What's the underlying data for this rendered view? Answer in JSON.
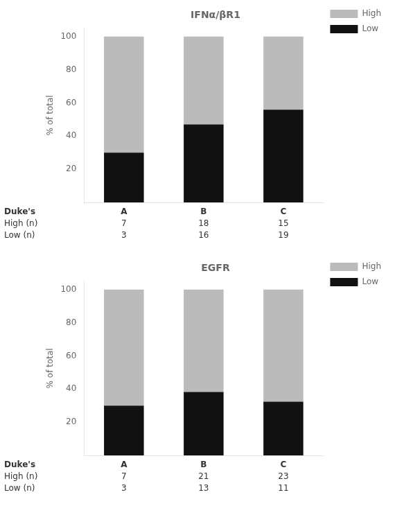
{
  "chart_data": [
    {
      "type": "bar",
      "title": "IFNα/βR1",
      "ylabel": "% of total",
      "xlabel": "Duke's",
      "categories": [
        "A",
        "B",
        "C"
      ],
      "stacked": true,
      "series": [
        {
          "name": "Low",
          "color": "#111111",
          "values": [
            30.0,
            47.06,
            55.88
          ]
        },
        {
          "name": "High",
          "color": "#bbbbbb",
          "values": [
            70.0,
            52.94,
            44.12
          ]
        }
      ],
      "table": [
        {
          "label": "High (n)",
          "values": [
            7,
            18,
            15
          ]
        },
        {
          "label": "Low (n)",
          "values": [
            3,
            16,
            19
          ]
        }
      ],
      "ylim": [
        0,
        105
      ],
      "yticks": [
        20,
        40,
        60,
        80,
        100
      ],
      "grid": false,
      "legend": "upper right"
    },
    {
      "type": "bar",
      "title": "EGFR",
      "ylabel": "% of total",
      "xlabel": "Duke's",
      "categories": [
        "A",
        "B",
        "C"
      ],
      "stacked": true,
      "series": [
        {
          "name": "Low",
          "color": "#111111",
          "values": [
            30.0,
            38.24,
            32.35
          ]
        },
        {
          "name": "High",
          "color": "#bbbbbb",
          "values": [
            70.0,
            61.76,
            67.65
          ]
        }
      ],
      "table": [
        {
          "label": "High (n)",
          "values": [
            7,
            21,
            23
          ]
        },
        {
          "label": "Low (n)",
          "values": [
            3,
            13,
            11
          ]
        }
      ],
      "ylim": [
        0,
        105
      ],
      "yticks": [
        20,
        40,
        60,
        80,
        100
      ],
      "grid": false,
      "legend": "upper right"
    }
  ]
}
